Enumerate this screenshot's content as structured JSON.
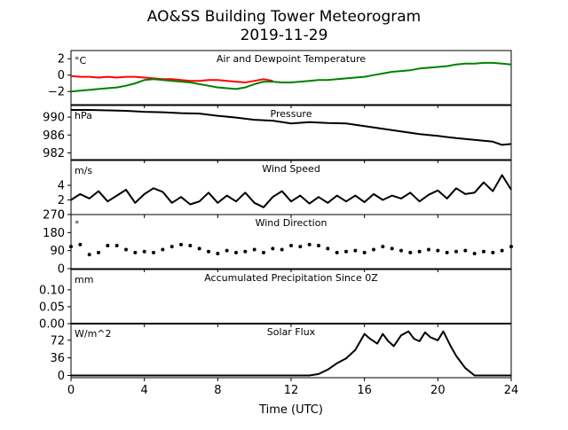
{
  "header": {
    "title": "AO&SS Building Tower Meteorogram",
    "subtitle": "2019-11-29"
  },
  "chart_data": [
    {
      "type": "line",
      "title": "Air and Dewpoint Temperature",
      "ylabel": "°C",
      "ylim": [
        -3.6,
        3.0
      ],
      "yticks": [
        2,
        0,
        -2
      ],
      "series": [
        {
          "name": "",
          "color": "#ff0000",
          "x": [
            0,
            0.5,
            1,
            1.5,
            2,
            2.5,
            3,
            3.5,
            4,
            4.5,
            5,
            5.5,
            6,
            6.5,
            7,
            7.5,
            8,
            8.5,
            9,
            9.5,
            10,
            10.5,
            11
          ],
          "values": [
            -0.1,
            -0.2,
            -0.2,
            -0.3,
            -0.2,
            -0.3,
            -0.2,
            -0.2,
            -0.3,
            -0.4,
            -0.5,
            -0.5,
            -0.6,
            -0.7,
            -0.7,
            -0.6,
            -0.6,
            -0.7,
            -0.8,
            -0.9,
            -0.7,
            -0.5,
            -0.7
          ]
        },
        {
          "name": "",
          "color": "#008000",
          "x": [
            0,
            0.5,
            1,
            1.5,
            2,
            2.5,
            3,
            3.5,
            4,
            4.5,
            5,
            5.5,
            6,
            6.5,
            7,
            7.5,
            8,
            8.5,
            9,
            9.5,
            10,
            10.5,
            11,
            11.5,
            12,
            12.5,
            13,
            13.5,
            14,
            14.5,
            15,
            15.5,
            16,
            16.5,
            17,
            17.5,
            18,
            18.5,
            19,
            19.5,
            20,
            20.5,
            21,
            21.5,
            22,
            22.5,
            23,
            23.5,
            24
          ],
          "values": [
            -2.0,
            -1.9,
            -1.8,
            -1.7,
            -1.6,
            -1.5,
            -1.3,
            -1.0,
            -0.6,
            -0.5,
            -0.6,
            -0.7,
            -0.8,
            -0.9,
            -1.1,
            -1.3,
            -1.5,
            -1.6,
            -1.7,
            -1.5,
            -1.1,
            -0.8,
            -0.8,
            -0.9,
            -0.9,
            -0.8,
            -0.7,
            -0.6,
            -0.6,
            -0.5,
            -0.4,
            -0.3,
            -0.2,
            0.0,
            0.2,
            0.4,
            0.5,
            0.6,
            0.8,
            0.9,
            1.0,
            1.1,
            1.3,
            1.4,
            1.4,
            1.5,
            1.5,
            1.4,
            1.3
          ]
        }
      ]
    },
    {
      "type": "line",
      "title": "Pressure",
      "ylabel": "hPa",
      "ylim": [
        980.5,
        992.6
      ],
      "yticks": [
        990,
        986,
        982
      ],
      "series": [
        {
          "name": "",
          "color": "#000000",
          "x": [
            0,
            1,
            2,
            3,
            4,
            5,
            6,
            7,
            8,
            9,
            10,
            11,
            12,
            13,
            14,
            15,
            16,
            17,
            18,
            19,
            20,
            21,
            22,
            23,
            23.5,
            24
          ],
          "values": [
            991.6,
            991.6,
            991.5,
            991.4,
            991.2,
            991.1,
            990.9,
            990.8,
            990.3,
            989.9,
            989.4,
            989.2,
            988.6,
            988.9,
            988.7,
            988.6,
            988.0,
            987.4,
            986.8,
            986.2,
            985.8,
            985.3,
            984.9,
            984.5,
            983.8,
            984.0
          ]
        }
      ]
    },
    {
      "type": "line",
      "title": "Wind Speed",
      "ylabel": "m/s",
      "ylim": [
        0,
        7.4
      ],
      "yticks": [
        4,
        2,
        0
      ],
      "series": [
        {
          "name": "",
          "color": "#000000",
          "x": [
            0,
            0.5,
            1,
            1.5,
            2,
            2.5,
            3,
            3.5,
            4,
            4.5,
            5,
            5.5,
            6,
            6.5,
            7,
            7.5,
            8,
            8.5,
            9,
            9.5,
            10,
            10.5,
            11,
            11.5,
            12,
            12.5,
            13,
            13.5,
            14,
            14.5,
            15,
            15.5,
            16,
            16.5,
            17,
            17.5,
            18,
            18.5,
            19,
            19.5,
            20,
            20.5,
            21,
            21.5,
            22,
            22.5,
            23,
            23.5,
            24
          ],
          "values": [
            2.0,
            2.8,
            2.2,
            3.2,
            1.8,
            2.6,
            3.4,
            1.6,
            2.8,
            3.6,
            3.1,
            1.6,
            2.4,
            1.4,
            1.8,
            3.0,
            1.6,
            2.6,
            1.8,
            3.0,
            1.6,
            1.0,
            2.4,
            3.2,
            1.8,
            2.6,
            1.5,
            2.4,
            1.6,
            2.6,
            1.8,
            2.6,
            1.7,
            2.8,
            2.0,
            2.6,
            2.2,
            3.0,
            1.8,
            2.7,
            3.3,
            2.2,
            3.6,
            2.8,
            3.0,
            4.4,
            3.2,
            5.4,
            3.4
          ]
        }
      ]
    },
    {
      "type": "scatter",
      "title": "Wind Direction",
      "ylabel": "°",
      "ylim": [
        0,
        270
      ],
      "yticks": [
        270,
        180,
        90,
        0
      ],
      "series": [
        {
          "name": "",
          "color": "#000000",
          "x": [
            0,
            0.5,
            1,
            1.5,
            2,
            2.5,
            3,
            3.5,
            4,
            4.5,
            5,
            5.5,
            6,
            6.5,
            7,
            7.5,
            8,
            8.5,
            9,
            9.5,
            10,
            10.5,
            11,
            11.5,
            12,
            12.5,
            13,
            13.5,
            14,
            14.5,
            15,
            15.5,
            16,
            16.5,
            17,
            17.5,
            18,
            18.5,
            19,
            19.5,
            20,
            20.5,
            21,
            21.5,
            22,
            22.5,
            23,
            23.5,
            24
          ],
          "values": [
            110,
            120,
            70,
            80,
            115,
            115,
            95,
            80,
            85,
            80,
            95,
            110,
            120,
            115,
            100,
            85,
            75,
            90,
            80,
            85,
            95,
            80,
            100,
            95,
            115,
            110,
            120,
            115,
            100,
            80,
            85,
            90,
            80,
            95,
            110,
            100,
            90,
            80,
            85,
            95,
            90,
            80,
            85,
            90,
            75,
            85,
            80,
            90,
            110
          ]
        }
      ]
    },
    {
      "type": "line",
      "title": "Accumulated Precipitation Since 0Z",
      "ylabel": "mm",
      "ylim": [
        0,
        0.16
      ],
      "yticks": [
        0.1,
        0.05,
        0.0
      ],
      "ytick_labels": [
        "0.10",
        "0.05",
        "0.00"
      ],
      "series": [
        {
          "name": "",
          "color": "#000000",
          "x": [
            0,
            24
          ],
          "values": [
            0.0,
            0.0
          ]
        }
      ]
    },
    {
      "type": "line",
      "title": "Solar Flux",
      "ylabel": "W/m^2",
      "ylim": [
        -4.5,
        106
      ],
      "yticks": [
        72,
        36,
        0
      ],
      "xlabel": "Time (UTC)",
      "xlim": [
        0,
        24
      ],
      "xticks": [
        0,
        4,
        8,
        12,
        16,
        20,
        24
      ],
      "series": [
        {
          "name": "",
          "color": "#000000",
          "x": [
            0,
            13,
            13.5,
            14,
            14.5,
            15,
            15.5,
            16,
            16.3,
            16.7,
            17,
            17.3,
            17.6,
            18,
            18.4,
            18.7,
            19,
            19.3,
            19.6,
            20,
            20.3,
            20.7,
            21,
            21.5,
            22,
            24
          ],
          "values": [
            0,
            0,
            3,
            12,
            25,
            35,
            52,
            85,
            75,
            65,
            85,
            70,
            60,
            82,
            90,
            75,
            70,
            88,
            78,
            72,
            90,
            60,
            40,
            15,
            0,
            0
          ]
        }
      ]
    }
  ]
}
